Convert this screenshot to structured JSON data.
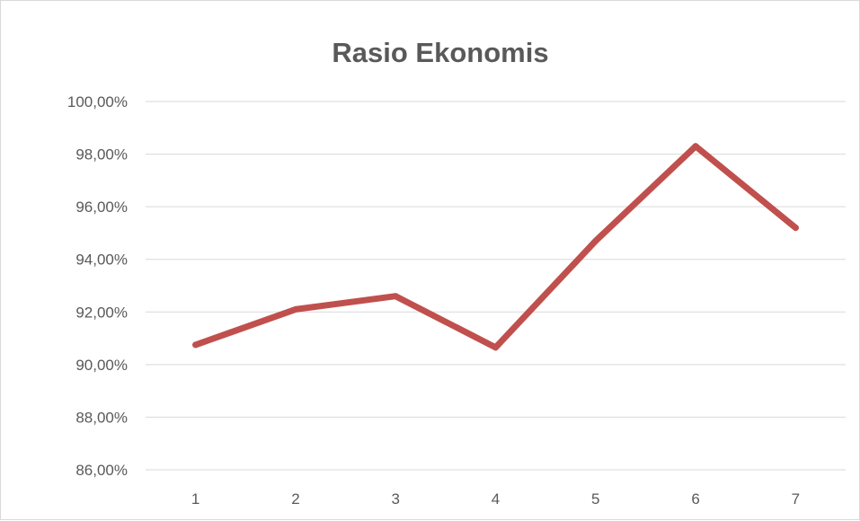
{
  "chart_data": {
    "type": "line",
    "title": "Rasio Ekonomis",
    "xlabel": "",
    "ylabel": "",
    "categories": [
      "1",
      "2",
      "3",
      "4",
      "5",
      "6",
      "7"
    ],
    "series": [
      {
        "values": [
          90.75,
          92.1,
          92.6,
          90.65,
          94.7,
          98.3,
          95.2
        ],
        "color": "#c0504d"
      }
    ],
    "ylim": [
      86,
      100
    ],
    "y_ticks": [
      86,
      88,
      90,
      92,
      94,
      96,
      98,
      100
    ],
    "y_tick_labels": [
      "86,00%",
      "88,00%",
      "90,00%",
      "92,00%",
      "94,00%",
      "96,00%",
      "98,00%",
      "100,00%"
    ],
    "grid": true,
    "legend": "none"
  }
}
